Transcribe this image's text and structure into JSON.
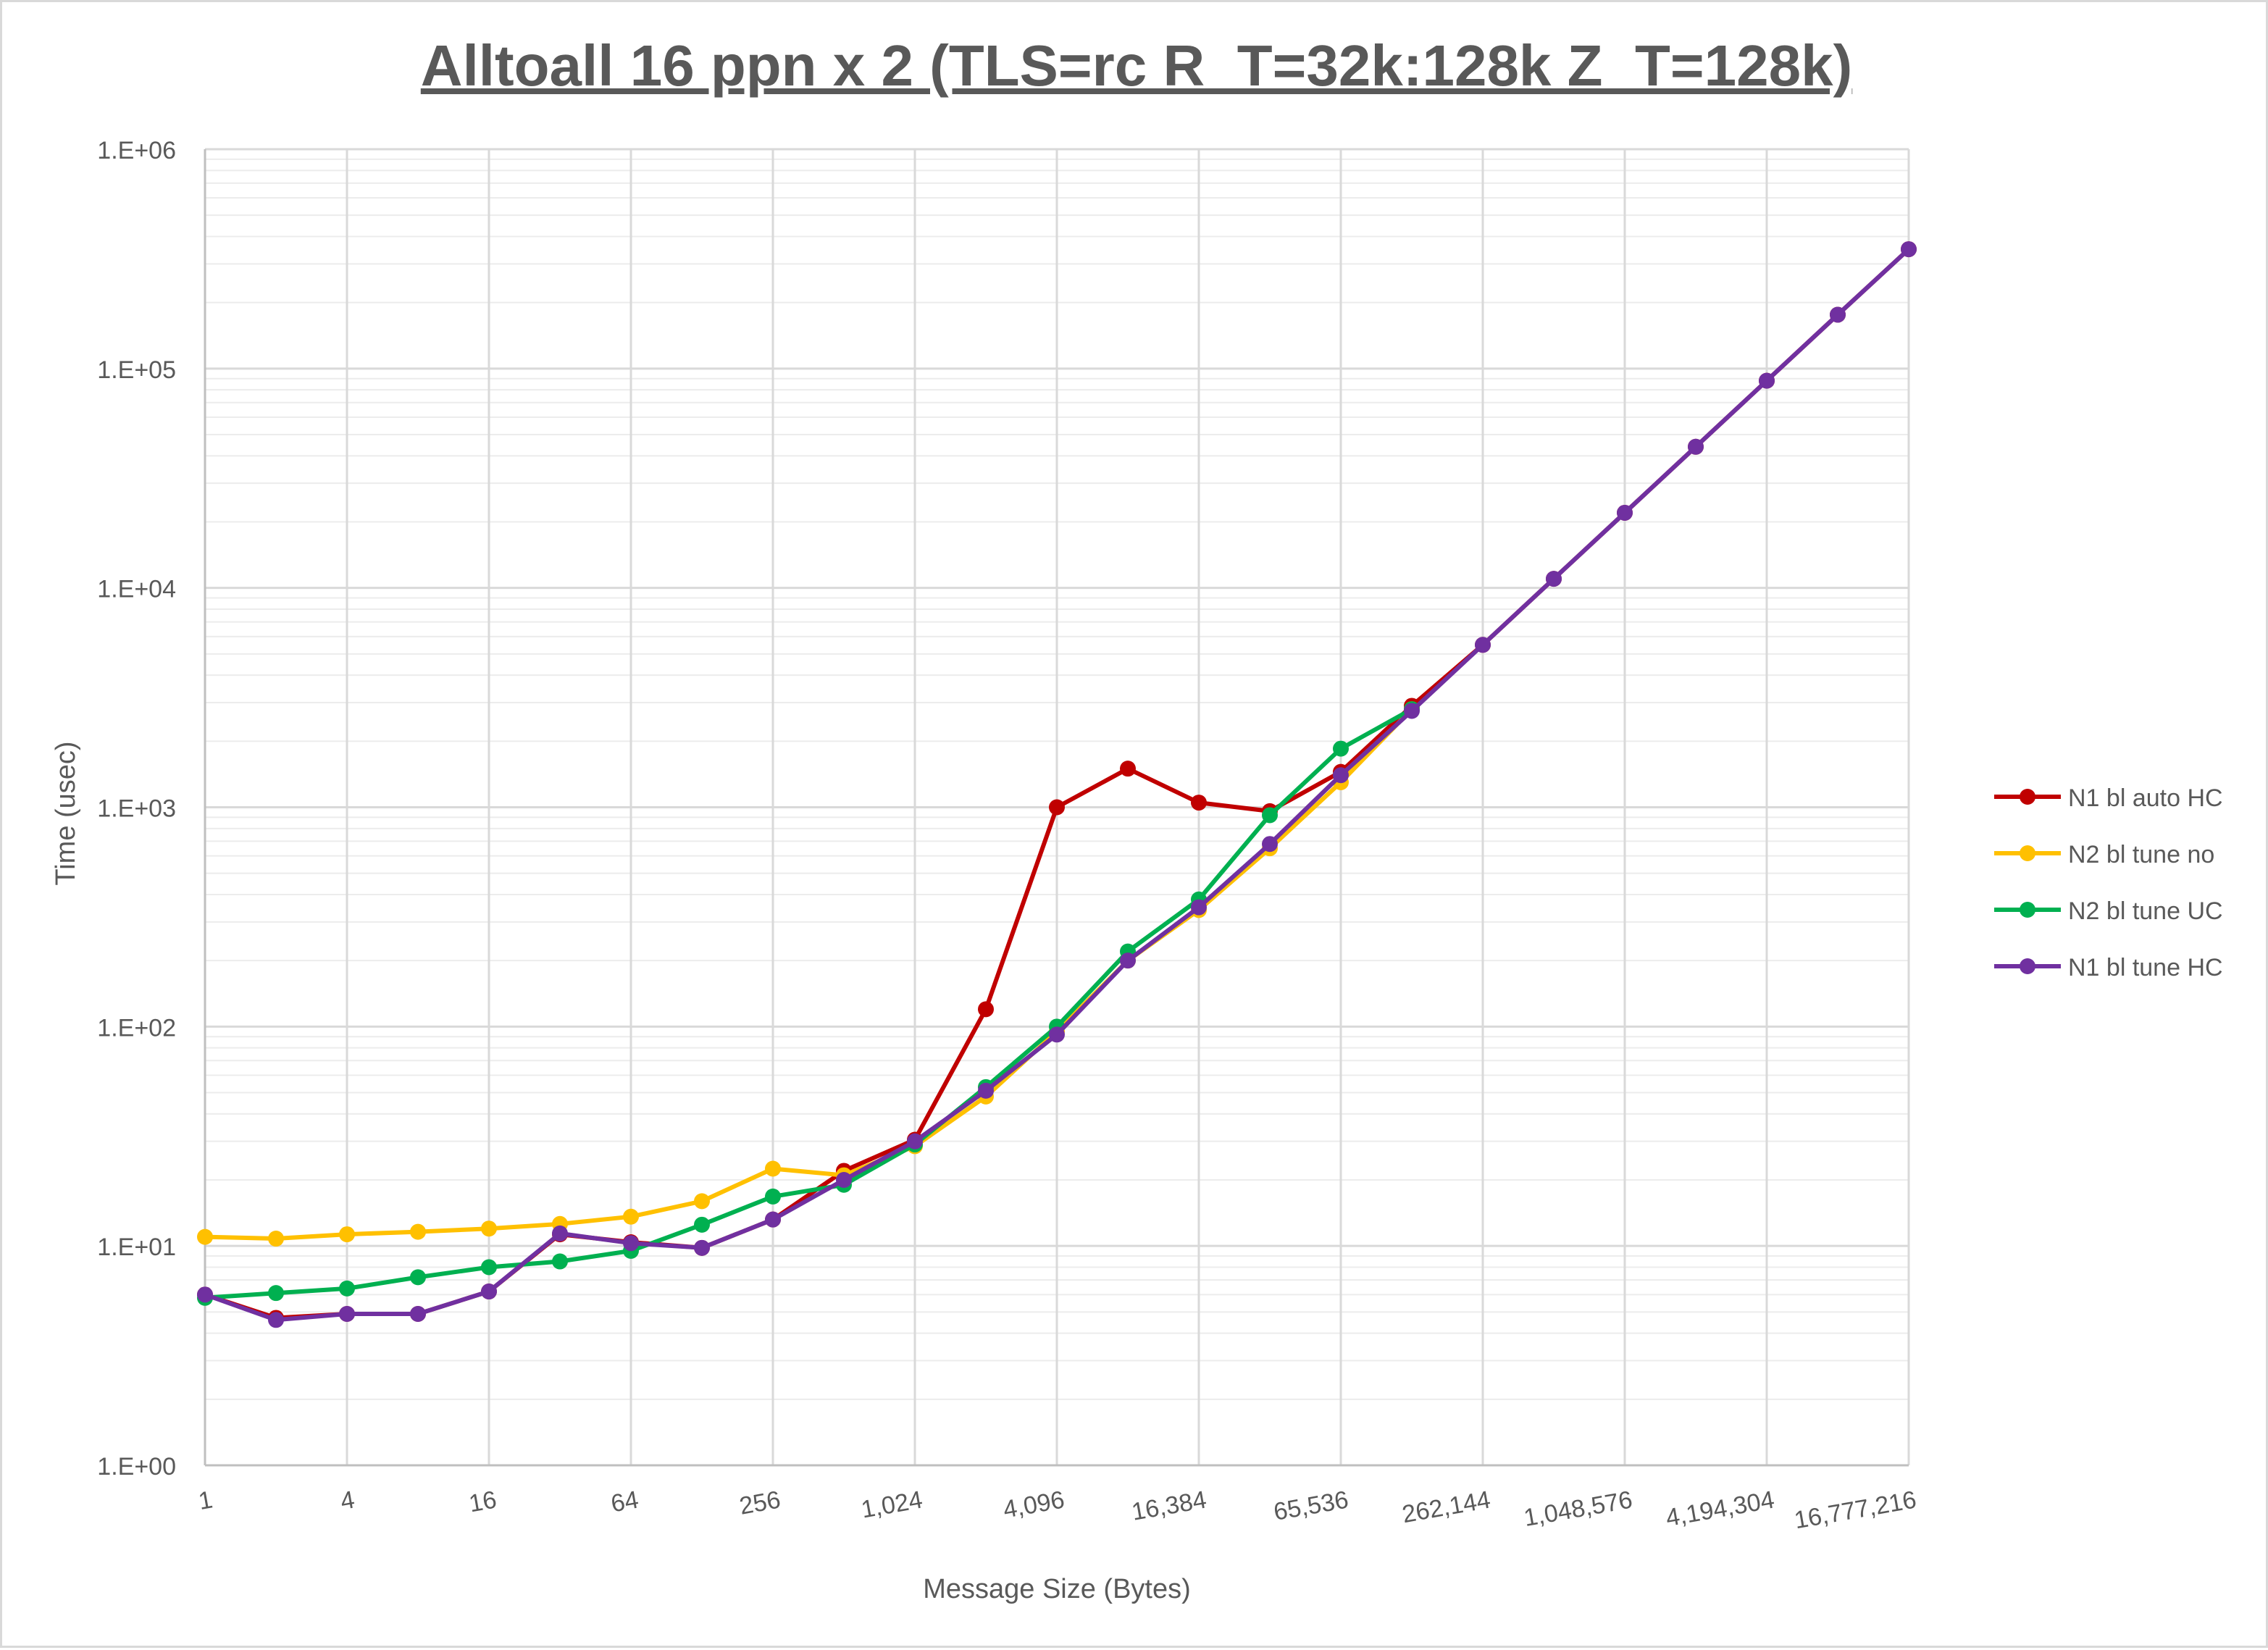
{
  "chart_data": {
    "type": "line",
    "title": "Alltoall 16 ppn x 2 (TLS=rc R_T=32k:128k Z_T=128k)",
    "xlabel": "Message Size (Bytes)",
    "ylabel": "Time (usec)",
    "x_scale": "log2",
    "y_scale": "log10",
    "x": [
      1,
      2,
      4,
      8,
      16,
      32,
      64,
      128,
      256,
      512,
      1024,
      2048,
      4096,
      8192,
      16384,
      32768,
      65536,
      131072,
      262144,
      524288,
      1048576,
      2097152,
      4194304,
      8388608,
      16777216
    ],
    "x_tick_labels": [
      "1",
      "4",
      "16",
      "64",
      "256",
      "1,024",
      "4,096",
      "16,384",
      "65,536",
      "262,144",
      "1,048,576",
      "4,194,304",
      "16,777,216"
    ],
    "x_tick_values": [
      1,
      4,
      16,
      64,
      256,
      1024,
      4096,
      16384,
      65536,
      262144,
      1048576,
      4194304,
      16777216
    ],
    "y_tick_labels": [
      "1.E+00",
      "1.E+01",
      "1.E+02",
      "1.E+03",
      "1.E+04",
      "1.E+05",
      "1.E+06"
    ],
    "y_tick_values": [
      1,
      10,
      100,
      1000,
      10000,
      100000,
      1000000
    ],
    "xlim": [
      1,
      16777216
    ],
    "ylim": [
      1,
      1000000
    ],
    "grid": true,
    "minor_y_grid": true,
    "legend_position": "right",
    "series": [
      {
        "name": "N1 bl auto HC",
        "color": "#c00000",
        "x": [
          1,
          2,
          4,
          8,
          16,
          32,
          64,
          128,
          256,
          512,
          1024,
          2048,
          4096,
          8192,
          16384,
          32768,
          65536,
          131072,
          262144,
          524288,
          1048576,
          2097152,
          4194304,
          8388608,
          16777216
        ],
        "values": [
          6.0,
          4.7,
          4.9,
          4.9,
          6.2,
          11.3,
          10.4,
          9.8,
          13.2,
          22.0,
          30.5,
          120,
          1000,
          1500,
          1050,
          960,
          1450,
          2900,
          5500,
          11000,
          22000,
          44000,
          88000,
          176000,
          350000
        ]
      },
      {
        "name": "N2 bl tune no",
        "color": "#ffc000",
        "x": [
          1,
          2,
          4,
          8,
          16,
          32,
          64,
          128,
          256,
          512,
          1024,
          2048,
          4096,
          8192,
          16384,
          32768,
          65536,
          131072
        ],
        "values": [
          11.0,
          10.8,
          11.3,
          11.6,
          12.0,
          12.6,
          13.6,
          16.0,
          22.5,
          21.0,
          28.5,
          48.0,
          95,
          200,
          340,
          650,
          1300,
          2800
        ]
      },
      {
        "name": "N2 bl tune UC",
        "color": "#00b050",
        "x": [
          1,
          2,
          4,
          8,
          16,
          32,
          64,
          128,
          256,
          512,
          1024,
          2048,
          4096,
          8192,
          16384,
          32768,
          65536,
          131072
        ],
        "values": [
          5.8,
          6.1,
          6.4,
          7.2,
          8.0,
          8.5,
          9.5,
          12.5,
          16.8,
          19.0,
          29.0,
          53.0,
          100,
          220,
          380,
          920,
          1850,
          2800
        ]
      },
      {
        "name": "N1 bl tune HC",
        "color": "#7030a0",
        "x": [
          1,
          2,
          4,
          8,
          16,
          32,
          64,
          128,
          256,
          512,
          1024,
          2048,
          4096,
          8192,
          16384,
          32768,
          65536,
          131072,
          262144,
          524288,
          1048576,
          2097152,
          4194304,
          8388608,
          16777216
        ],
        "values": [
          6.0,
          4.6,
          4.9,
          4.9,
          6.2,
          11.4,
          10.3,
          9.8,
          13.2,
          20.0,
          30.0,
          51.0,
          92,
          200,
          350,
          680,
          1400,
          2750,
          5500,
          11000,
          22000,
          44000,
          88000,
          176000,
          350000
        ]
      }
    ]
  }
}
